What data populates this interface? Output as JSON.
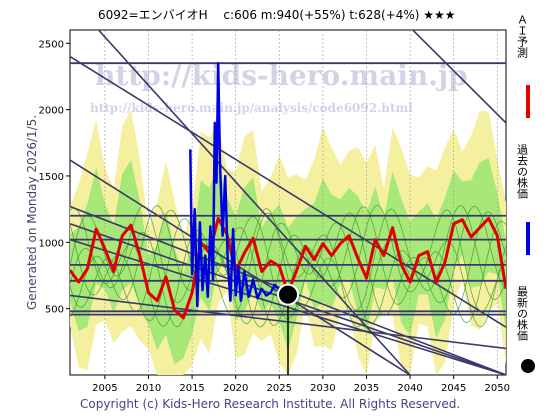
{
  "chart_data": {
    "type": "line",
    "title": "6092=エンバイオH　 c:606  m:940(+55%)  t:628(+4%)  ★★★",
    "side_text": "Generated on Monday 2026/1/5.",
    "copyright": "Copyright (c) Kids-Hero Research Institute. All Rights Reserved.",
    "watermark_main": "http://kids-hero.main.jp",
    "watermark_sub": "http://kids-hero.main.jp/analysis/code6092.html",
    "xlim": [
      2001,
      2051
    ],
    "ylim": [
      0,
      2600
    ],
    "x_ticks": [
      2005,
      2010,
      2015,
      2020,
      2025,
      2030,
      2035,
      2040,
      2045,
      2050
    ],
    "y_ticks": [
      500,
      1000,
      1500,
      2000,
      2500
    ],
    "legend": [
      {
        "label": "ＡＩ予測",
        "color": "#e00000"
      },
      {
        "label": "過去の株価",
        "color": "#0000e0"
      },
      {
        "label": "最新の株価",
        "color": "#000000"
      }
    ],
    "colors": {
      "band_outer": "#f5f0a0",
      "band_inner": "#a8e878",
      "cycle_lines": "#3a9a2a",
      "ai_line": "#e00000",
      "price_line": "#0000e0",
      "trend_lines": "#3a3a6a",
      "grid": "#9a9a9a"
    },
    "horizontal_lines": [
      2350,
      1200,
      1020,
      830,
      710,
      480,
      455
    ],
    "trend_lines": [
      {
        "x": [
          2004,
          2040
        ],
        "y": [
          2620,
          0
        ]
      },
      {
        "x": [
          2001,
          2040
        ],
        "y": [
          1620,
          0
        ]
      },
      {
        "x": [
          2001,
          2051
        ],
        "y": [
          1270,
          0
        ]
      },
      {
        "x": [
          2001,
          2051
        ],
        "y": [
          1140,
          0
        ]
      },
      {
        "x": [
          2001,
          2051
        ],
        "y": [
          1020,
          0
        ]
      },
      {
        "x": [
          2001,
          2051
        ],
        "y": [
          2400,
          360
        ]
      },
      {
        "x": [
          2040,
          2051
        ],
        "y": [
          2620,
          1900
        ]
      },
      {
        "x": [
          2001,
          2051
        ],
        "y": [
          600,
          200
        ]
      }
    ],
    "ai_forecast": {
      "x": [
        2001,
        2002,
        2003,
        2004,
        2005,
        2006,
        2007,
        2008,
        2009,
        2010,
        2011,
        2012,
        2013,
        2014,
        2015,
        2016,
        2017,
        2018,
        2019,
        2020,
        2021,
        2022,
        2023,
        2024,
        2025,
        2026,
        2027,
        2028,
        2029,
        2030,
        2031,
        2032,
        2033,
        2034,
        2035,
        2036,
        2037,
        2038,
        2039,
        2040,
        2041,
        2042,
        2043,
        2044,
        2045,
        2046,
        2047,
        2048,
        2049,
        2050,
        2051
      ],
      "y": [
        790,
        700,
        800,
        1100,
        950,
        780,
        1050,
        1130,
        900,
        620,
        560,
        740,
        490,
        430,
        620,
        1000,
        920,
        1180,
        1060,
        780,
        920,
        1030,
        780,
        860,
        820,
        620,
        790,
        970,
        870,
        990,
        900,
        990,
        1050,
        880,
        730,
        1020,
        900,
        1110,
        830,
        700,
        900,
        930,
        700,
        850,
        1140,
        1170,
        1040,
        1110,
        1180,
        1050,
        650
      ]
    },
    "price_history": {
      "x": [
        2014.8,
        2015,
        2015.3,
        2015.6,
        2015.9,
        2016.2,
        2016.5,
        2016.8,
        2017.1,
        2017.4,
        2017.6,
        2017.8,
        2018.0,
        2018.2,
        2018.5,
        2018.8,
        2019.1,
        2019.4,
        2019.7,
        2020.0,
        2020.3,
        2020.6,
        2021.0,
        2021.5,
        2022.0,
        2022.5,
        2023.0,
        2023.5,
        2024.0,
        2024.5,
        2025.0,
        2025.5,
        2026.0
      ],
      "y": [
        1700,
        760,
        1250,
        520,
        1150,
        640,
        900,
        590,
        1120,
        720,
        1900,
        1450,
        2350,
        1600,
        1050,
        1500,
        850,
        560,
        1100,
        600,
        820,
        560,
        780,
        590,
        720,
        580,
        650,
        600,
        620,
        680,
        640,
        600,
        620
      ]
    },
    "latest_price": {
      "x": 2026,
      "y": 606
    }
  }
}
